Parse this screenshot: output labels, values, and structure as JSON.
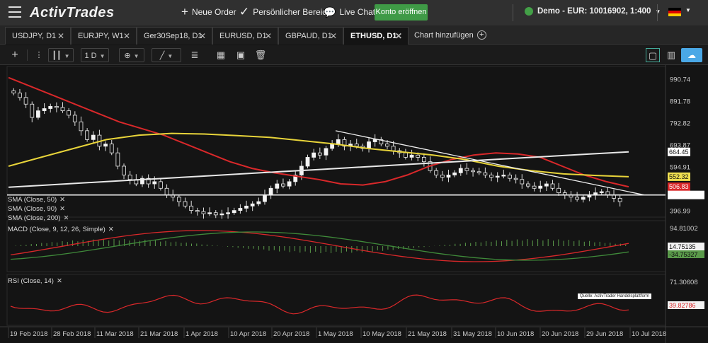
{
  "topbar": {
    "logo": "ActivTrades",
    "new_order": "Neue Order",
    "personal_area": "Persönlicher Bereich",
    "live_chat": "Live Chat",
    "open_account": "Konto eröffnen",
    "account": "Demo - EUR: 10016902, 1:400",
    "language_flag": "de-flag",
    "colors": {
      "accent": "#3f9a46"
    }
  },
  "tabs": [
    {
      "label": "USDJPY, D1",
      "active": false
    },
    {
      "label": "EURJPY, W1",
      "active": false
    },
    {
      "label": "Ger30Sep18, D1",
      "active": false
    },
    {
      "label": "EURUSD, D1",
      "active": false
    },
    {
      "label": "GBPAUD, D1",
      "active": false
    },
    {
      "label": "ETHUSD, D1",
      "active": true
    }
  ],
  "add_chart": "Chart hinzufügen",
  "toolbar": {
    "timeframe": "1 D",
    "icons": [
      "crosshair-icon",
      "candlestick-icon",
      "indicator-add-icon",
      "line-tool-icon",
      "fibonacci-icon",
      "compare-icon",
      "image-icon",
      "trash-icon",
      "layout-single-icon",
      "layout-grid-icon",
      "cloud-icon"
    ]
  },
  "indicators": {
    "sma50": "SMA (Close, 50)",
    "sma90": "SMA (Close, 90)",
    "sma200": "SMA (Close, 200)",
    "macd": "MACD (Close, 9, 12, 26, Simple)",
    "rsi": "RSI (Close, 14)"
  },
  "source_note": "Quelle: ActivTrader Handelsplattform",
  "chart_data": {
    "type": "candlestick",
    "symbol": "ETHUSD, D1",
    "price_axis_ticks": [
      990.74,
      891.78,
      792.82,
      693.87,
      594.91,
      396.99
    ],
    "price_labels": {
      "sma200": "664.45",
      "sma50_yellow": "552.32",
      "sma_red": "506.83"
    },
    "x_ticks": [
      "19 Feb 2018",
      "28 Feb 2018",
      "11 Mar 2018",
      "21 Mar 2018",
      "1 Apr 2018",
      "10 Apr 2018",
      "20 Apr 2018",
      "1 May 2018",
      "10 May 2018",
      "21 May 2018",
      "31 May 2018",
      "10 Jun 2018",
      "20 Jun 2018",
      "29 Jun 2018",
      "10 Jul 2018"
    ],
    "ohlc_close": [
      930,
      910,
      880,
      820,
      850,
      860,
      870,
      865,
      850,
      830,
      800,
      760,
      720,
      740,
      690,
      700,
      660,
      600,
      560,
      540,
      520,
      545,
      520,
      530,
      500,
      470,
      460,
      440,
      420,
      400,
      395,
      385,
      390,
      380,
      385,
      390,
      400,
      410,
      420,
      430,
      440,
      470,
      500,
      520,
      510,
      530,
      560,
      600,
      640,
      660,
      650,
      680,
      700,
      720,
      690,
      700,
      690,
      680,
      710,
      720,
      700,
      690,
      670,
      660,
      640,
      650,
      640,
      620,
      580,
      560,
      550,
      560,
      570,
      590,
      580,
      575,
      570,
      560,
      550,
      555,
      560,
      545,
      540,
      520,
      510,
      500,
      510,
      520,
      500,
      480,
      470,
      460,
      450,
      460,
      470,
      480,
      485,
      470,
      455,
      440
    ],
    "sma200": [
      505,
      515,
      525,
      535,
      545,
      555,
      565,
      575,
      585,
      595,
      605,
      615,
      625,
      635,
      645,
      655,
      664.45
    ],
    "sma50": [
      600,
      640,
      680,
      720,
      740,
      748,
      745,
      738,
      730,
      715,
      700,
      680,
      665,
      650,
      630,
      600,
      580,
      565,
      558,
      552.32
    ],
    "sma_red": [
      1000,
      960,
      920,
      880,
      840,
      800,
      770,
      740,
      700,
      660,
      620,
      590,
      570,
      555,
      540,
      520,
      515,
      530,
      560,
      600,
      630,
      650,
      660,
      655,
      640,
      600,
      560,
      530,
      506.83
    ],
    "trendline": {
      "start": 760,
      "end": 470
    },
    "support_line": 470,
    "macd": {
      "axis_ticks": [
        94.81002
      ],
      "labels": [
        "14.75135",
        "-34.75327"
      ]
    },
    "rsi": {
      "axis_ticks": [
        71.30608
      ],
      "labels": [
        "39.82786"
      ]
    }
  }
}
